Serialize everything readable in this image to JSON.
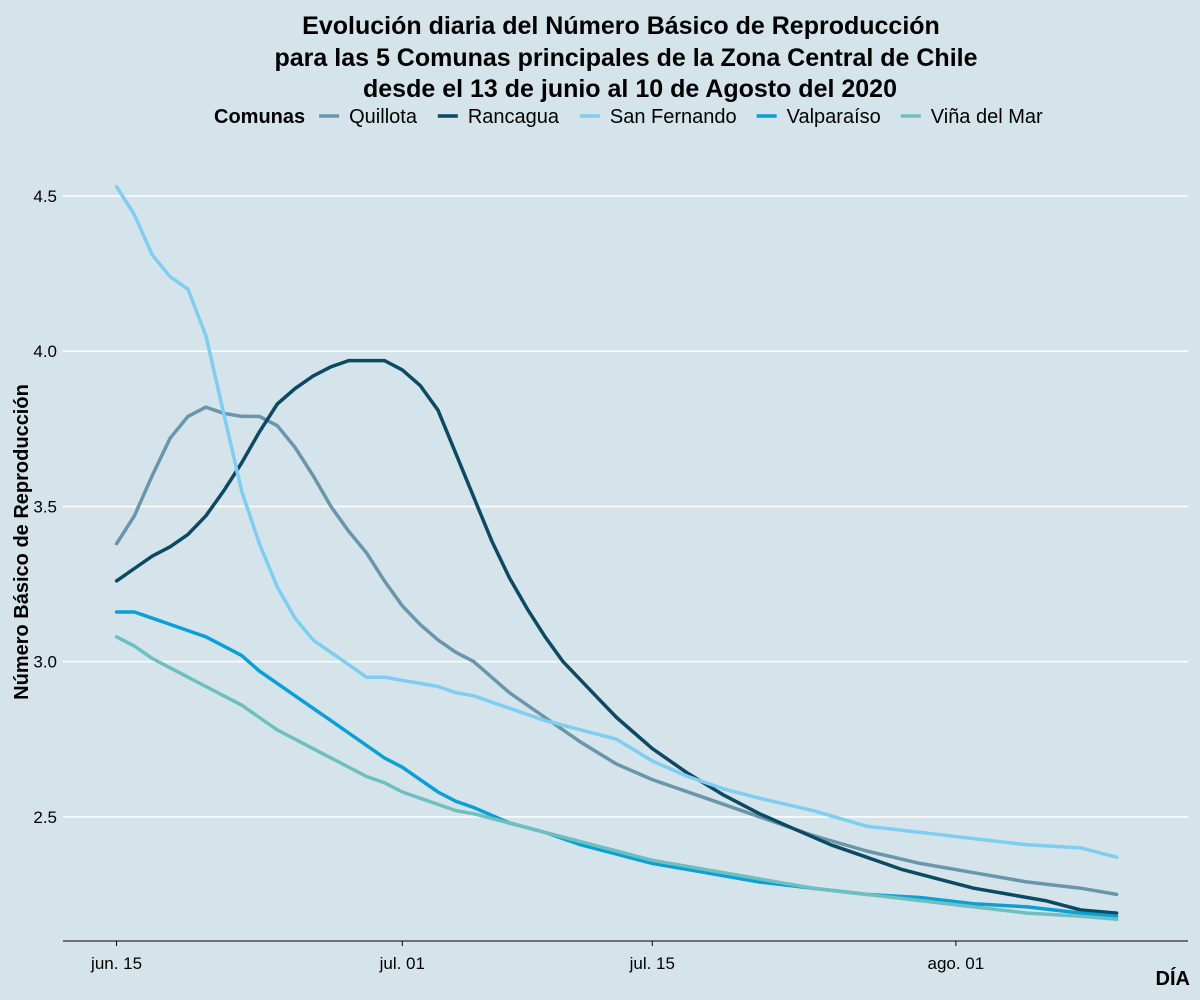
{
  "chart_data": {
    "type": "line",
    "title": [
      "Evolución diaria del Número Básico de Reproducción",
      "para las 5 Comunas principales de la Zona Central de Chile",
      "desde el 13 de junio al 10 de Agosto del 2020"
    ],
    "xlabel": "DÍA",
    "ylabel": "Número Básico de Reproducción",
    "legend_title": "Comunas",
    "legend_position": "top",
    "grid": "horizontal major lines",
    "x_range": [
      "2020-06-12",
      "2020-08-14"
    ],
    "ylim": [
      2.1,
      4.6
    ],
    "x_ticks": [
      {
        "date": "2020-06-15",
        "label": "jun. 15"
      },
      {
        "date": "2020-07-01",
        "label": "jul. 01"
      },
      {
        "date": "2020-07-15",
        "label": "jul. 15"
      },
      {
        "date": "2020-08-01",
        "label": "ago. 01"
      }
    ],
    "y_ticks": [
      {
        "value": 2.5,
        "label": "2.5"
      },
      {
        "value": 3.0,
        "label": "3.0"
      },
      {
        "value": 3.5,
        "label": "3.5"
      },
      {
        "value": 4.0,
        "label": "4.0"
      },
      {
        "value": 4.5,
        "label": "4.5"
      }
    ],
    "series": [
      {
        "name": "Quillota",
        "color": "#6a96ac",
        "points": [
          [
            "2020-06-15",
            3.38
          ],
          [
            "2020-06-16",
            3.47
          ],
          [
            "2020-06-17",
            3.6
          ],
          [
            "2020-06-18",
            3.72
          ],
          [
            "2020-06-19",
            3.79
          ],
          [
            "2020-06-20",
            3.82
          ],
          [
            "2020-06-21",
            3.8
          ],
          [
            "2020-06-22",
            3.79
          ],
          [
            "2020-06-23",
            3.79
          ],
          [
            "2020-06-24",
            3.76
          ],
          [
            "2020-06-25",
            3.69
          ],
          [
            "2020-06-26",
            3.6
          ],
          [
            "2020-06-27",
            3.5
          ],
          [
            "2020-06-28",
            3.42
          ],
          [
            "2020-06-29",
            3.35
          ],
          [
            "2020-06-30",
            3.26
          ],
          [
            "2020-07-01",
            3.18
          ],
          [
            "2020-07-02",
            3.12
          ],
          [
            "2020-07-03",
            3.07
          ],
          [
            "2020-07-04",
            3.03
          ],
          [
            "2020-07-05",
            3.0
          ],
          [
            "2020-07-07",
            2.9
          ],
          [
            "2020-07-09",
            2.82
          ],
          [
            "2020-07-11",
            2.74
          ],
          [
            "2020-07-13",
            2.67
          ],
          [
            "2020-07-15",
            2.62
          ],
          [
            "2020-07-18",
            2.56
          ],
          [
            "2020-07-21",
            2.5
          ],
          [
            "2020-07-24",
            2.44
          ],
          [
            "2020-07-27",
            2.39
          ],
          [
            "2020-07-30",
            2.35
          ],
          [
            "2020-08-02",
            2.32
          ],
          [
            "2020-08-05",
            2.29
          ],
          [
            "2020-08-08",
            2.27
          ],
          [
            "2020-08-10",
            2.25
          ]
        ]
      },
      {
        "name": "Rancagua",
        "color": "#0b4a62",
        "points": [
          [
            "2020-06-15",
            3.26
          ],
          [
            "2020-06-16",
            3.3
          ],
          [
            "2020-06-17",
            3.34
          ],
          [
            "2020-06-18",
            3.37
          ],
          [
            "2020-06-19",
            3.41
          ],
          [
            "2020-06-20",
            3.47
          ],
          [
            "2020-06-21",
            3.55
          ],
          [
            "2020-06-22",
            3.64
          ],
          [
            "2020-06-23",
            3.74
          ],
          [
            "2020-06-24",
            3.83
          ],
          [
            "2020-06-25",
            3.88
          ],
          [
            "2020-06-26",
            3.92
          ],
          [
            "2020-06-27",
            3.95
          ],
          [
            "2020-06-28",
            3.97
          ],
          [
            "2020-06-29",
            3.97
          ],
          [
            "2020-06-30",
            3.97
          ],
          [
            "2020-07-01",
            3.94
          ],
          [
            "2020-07-02",
            3.89
          ],
          [
            "2020-07-03",
            3.81
          ],
          [
            "2020-07-04",
            3.67
          ],
          [
            "2020-07-05",
            3.53
          ],
          [
            "2020-07-06",
            3.39
          ],
          [
            "2020-07-07",
            3.27
          ],
          [
            "2020-07-08",
            3.17
          ],
          [
            "2020-07-09",
            3.08
          ],
          [
            "2020-07-10",
            3.0
          ],
          [
            "2020-07-11",
            2.94
          ],
          [
            "2020-07-12",
            2.88
          ],
          [
            "2020-07-13",
            2.82
          ],
          [
            "2020-07-14",
            2.77
          ],
          [
            "2020-07-15",
            2.72
          ],
          [
            "2020-07-17",
            2.64
          ],
          [
            "2020-07-19",
            2.57
          ],
          [
            "2020-07-21",
            2.51
          ],
          [
            "2020-07-23",
            2.46
          ],
          [
            "2020-07-25",
            2.41
          ],
          [
            "2020-07-27",
            2.37
          ],
          [
            "2020-07-29",
            2.33
          ],
          [
            "2020-07-31",
            2.3
          ],
          [
            "2020-08-02",
            2.27
          ],
          [
            "2020-08-04",
            2.25
          ],
          [
            "2020-08-06",
            2.23
          ],
          [
            "2020-08-08",
            2.2
          ],
          [
            "2020-08-10",
            2.19
          ]
        ]
      },
      {
        "name": "San Fernando",
        "color": "#7fcdf0",
        "points": [
          [
            "2020-06-15",
            4.53
          ],
          [
            "2020-06-16",
            4.44
          ],
          [
            "2020-06-17",
            4.31
          ],
          [
            "2020-06-18",
            4.24
          ],
          [
            "2020-06-19",
            4.2
          ],
          [
            "2020-06-20",
            4.05
          ],
          [
            "2020-06-21",
            3.8
          ],
          [
            "2020-06-22",
            3.55
          ],
          [
            "2020-06-23",
            3.38
          ],
          [
            "2020-06-24",
            3.24
          ],
          [
            "2020-06-25",
            3.14
          ],
          [
            "2020-06-26",
            3.07
          ],
          [
            "2020-06-27",
            3.03
          ],
          [
            "2020-06-28",
            2.99
          ],
          [
            "2020-06-29",
            2.95
          ],
          [
            "2020-06-30",
            2.95
          ],
          [
            "2020-07-01",
            2.94
          ],
          [
            "2020-07-02",
            2.93
          ],
          [
            "2020-07-03",
            2.92
          ],
          [
            "2020-07-04",
            2.9
          ],
          [
            "2020-07-05",
            2.89
          ],
          [
            "2020-07-07",
            2.85
          ],
          [
            "2020-07-09",
            2.81
          ],
          [
            "2020-07-11",
            2.78
          ],
          [
            "2020-07-13",
            2.75
          ],
          [
            "2020-07-15",
            2.68
          ],
          [
            "2020-07-17",
            2.63
          ],
          [
            "2020-07-19",
            2.59
          ],
          [
            "2020-07-21",
            2.56
          ],
          [
            "2020-07-24",
            2.52
          ],
          [
            "2020-07-27",
            2.47
          ],
          [
            "2020-07-30",
            2.45
          ],
          [
            "2020-08-02",
            2.43
          ],
          [
            "2020-08-05",
            2.41
          ],
          [
            "2020-08-08",
            2.4
          ],
          [
            "2020-08-10",
            2.37
          ]
        ]
      },
      {
        "name": "Valparaíso",
        "color": "#0aa0d6",
        "points": [
          [
            "2020-06-15",
            3.16
          ],
          [
            "2020-06-16",
            3.16
          ],
          [
            "2020-06-17",
            3.14
          ],
          [
            "2020-06-18",
            3.12
          ],
          [
            "2020-06-19",
            3.1
          ],
          [
            "2020-06-20",
            3.08
          ],
          [
            "2020-06-21",
            3.05
          ],
          [
            "2020-06-22",
            3.02
          ],
          [
            "2020-06-23",
            2.97
          ],
          [
            "2020-06-24",
            2.93
          ],
          [
            "2020-06-25",
            2.89
          ],
          [
            "2020-06-26",
            2.85
          ],
          [
            "2020-06-27",
            2.81
          ],
          [
            "2020-06-28",
            2.77
          ],
          [
            "2020-06-29",
            2.73
          ],
          [
            "2020-06-30",
            2.69
          ],
          [
            "2020-07-01",
            2.66
          ],
          [
            "2020-07-02",
            2.62
          ],
          [
            "2020-07-03",
            2.58
          ],
          [
            "2020-07-04",
            2.55
          ],
          [
            "2020-07-05",
            2.53
          ],
          [
            "2020-07-07",
            2.48
          ],
          [
            "2020-07-09",
            2.45
          ],
          [
            "2020-07-11",
            2.41
          ],
          [
            "2020-07-13",
            2.38
          ],
          [
            "2020-07-15",
            2.35
          ],
          [
            "2020-07-18",
            2.32
          ],
          [
            "2020-07-21",
            2.29
          ],
          [
            "2020-07-24",
            2.27
          ],
          [
            "2020-07-27",
            2.25
          ],
          [
            "2020-07-30",
            2.24
          ],
          [
            "2020-08-02",
            2.22
          ],
          [
            "2020-08-05",
            2.21
          ],
          [
            "2020-08-08",
            2.19
          ],
          [
            "2020-08-10",
            2.18
          ]
        ]
      },
      {
        "name": "Viña del Mar",
        "color": "#6ebfc0",
        "points": [
          [
            "2020-06-15",
            3.08
          ],
          [
            "2020-06-16",
            3.05
          ],
          [
            "2020-06-17",
            3.01
          ],
          [
            "2020-06-18",
            2.98
          ],
          [
            "2020-06-19",
            2.95
          ],
          [
            "2020-06-20",
            2.92
          ],
          [
            "2020-06-21",
            2.89
          ],
          [
            "2020-06-22",
            2.86
          ],
          [
            "2020-06-23",
            2.82
          ],
          [
            "2020-06-24",
            2.78
          ],
          [
            "2020-06-25",
            2.75
          ],
          [
            "2020-06-26",
            2.72
          ],
          [
            "2020-06-27",
            2.69
          ],
          [
            "2020-06-28",
            2.66
          ],
          [
            "2020-06-29",
            2.63
          ],
          [
            "2020-06-30",
            2.61
          ],
          [
            "2020-07-01",
            2.58
          ],
          [
            "2020-07-02",
            2.56
          ],
          [
            "2020-07-03",
            2.54
          ],
          [
            "2020-07-04",
            2.52
          ],
          [
            "2020-07-05",
            2.51
          ],
          [
            "2020-07-07",
            2.48
          ],
          [
            "2020-07-09",
            2.45
          ],
          [
            "2020-07-11",
            2.42
          ],
          [
            "2020-07-13",
            2.39
          ],
          [
            "2020-07-15",
            2.36
          ],
          [
            "2020-07-18",
            2.33
          ],
          [
            "2020-07-21",
            2.3
          ],
          [
            "2020-07-24",
            2.27
          ],
          [
            "2020-07-27",
            2.25
          ],
          [
            "2020-07-30",
            2.23
          ],
          [
            "2020-08-02",
            2.21
          ],
          [
            "2020-08-05",
            2.19
          ],
          [
            "2020-08-08",
            2.18
          ],
          [
            "2020-08-10",
            2.17
          ]
        ]
      }
    ]
  }
}
